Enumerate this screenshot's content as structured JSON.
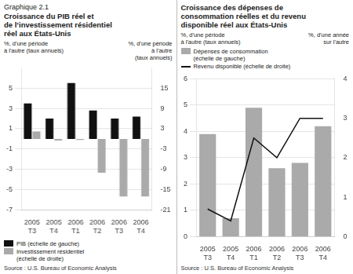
{
  "chart_data": [
    {
      "type": "bar",
      "subtitle": "Graphique 2.1",
      "title": "Croissance du PIB réel et\nde l’investissement résidentiel\nréel aux États-Unis",
      "ylabel": "%, d'une période\nà l'autre (taux annuels)",
      "y2label": "%, d'une période\nà l'autre\n(taux annuels)",
      "categories": [
        "2005\nT3",
        "2005\nT4",
        "2006\nT1",
        "2006\nT2",
        "2006\nT3",
        "2006\nT4"
      ],
      "series": [
        {
          "name": "PIB (échelle de gauche)",
          "color": "#111111",
          "values": [
            3.5,
            2.0,
            5.5,
            2.8,
            2.0,
            2.2
          ]
        },
        {
          "name": "Investissement résidentiel\n(échelle de droite)",
          "color": "#aaaaaa",
          "axis": "y2",
          "values": [
            2.2,
            -0.5,
            -0.3,
            -10.0,
            -17.0,
            -17.0
          ]
        }
      ],
      "ylim": [
        -7,
        7
      ],
      "yticks": [
        -7,
        -5,
        -3,
        -1,
        1,
        3,
        5
      ],
      "y2lim": [
        -21,
        21
      ],
      "y2ticks": [
        -21,
        -15,
        -9,
        -3,
        3,
        9,
        15
      ],
      "grid": true,
      "legend": "lower left",
      "annotations": [
        "Source : U.S. Bureau of Economic Analysis"
      ]
    },
    {
      "type": "bar",
      "title": "Croissance des dépenses de\nconsommation réelles et du revenu\ndisponible réel aux États-Unis",
      "ylabel": "%, d'une période\nà l'autre (taux annuels)",
      "y2label": "%, d'une année\nsur l'autre",
      "categories": [
        "2005\nT3",
        "2005\nT4",
        "2006\nT1",
        "2006\nT2",
        "2006\nT3",
        "2006\nT4"
      ],
      "series": [
        {
          "name": "Dépenses de consommation\n(échelle de gauche)",
          "type": "bar",
          "color": "#aaaaaa",
          "values": [
            3.9,
            0.7,
            4.9,
            2.6,
            2.8,
            4.2
          ]
        },
        {
          "name": "Revenu disponible (échelle de droite)",
          "type": "line",
          "color": "#111111",
          "axis": "y2",
          "values": [
            0.7,
            0.4,
            2.5,
            2.0,
            3.0,
            3.0
          ]
        }
      ],
      "ylim": [
        0,
        6
      ],
      "yticks": [
        0,
        1,
        2,
        3,
        4,
        5,
        6
      ],
      "y2lim": [
        0,
        4
      ],
      "y2ticks": [
        0,
        1,
        2,
        3,
        4
      ],
      "grid": true,
      "legend": "upper left",
      "annotations": [
        "Source : U.S. Bureau of Economic Analysis"
      ]
    }
  ]
}
